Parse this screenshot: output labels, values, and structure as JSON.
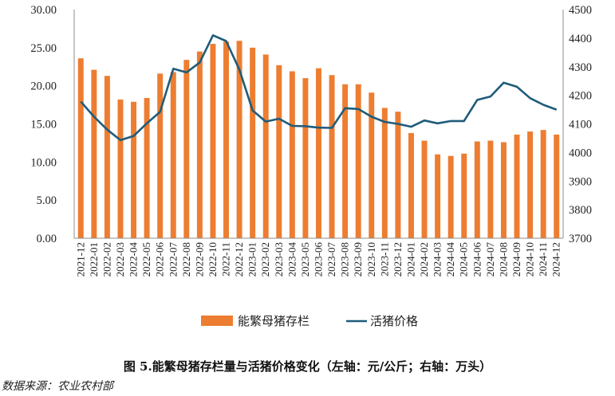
{
  "caption": "图 5.能繁母猪存栏量与活猪价格变化（左轴：元/公斤；右轴：万头）",
  "source": "数据来源：农业农村部",
  "colors": {
    "bar": "#ED7D31",
    "line": "#1F5C7A"
  },
  "chart_data": {
    "type": "bar+line",
    "categories": [
      "2021-12",
      "2022-01",
      "2022-02",
      "2022-03",
      "2022-04",
      "2022-05",
      "2022-06",
      "2022-07",
      "2022-08",
      "2022-09",
      "2022-10",
      "2022-11",
      "2022-12",
      "2023-01",
      "2023-02",
      "2023-03",
      "2023-04",
      "2023-05",
      "2023-06",
      "2023-07",
      "2023-08",
      "2023-09",
      "2023-10",
      "2023-11",
      "2023-12",
      "2024-01",
      "2024-02",
      "2024-03",
      "2024-04",
      "2024-05",
      "2024-06",
      "2024-07",
      "2024-08",
      "2024-09",
      "2024-10",
      "2024-11",
      "2024-12"
    ],
    "series": [
      {
        "name": "能繁母猪存栏",
        "type": "bar",
        "axis": "left",
        "values": [
          23.6,
          22.1,
          21.3,
          18.2,
          17.9,
          18.4,
          21.6,
          21.8,
          23.4,
          24.5,
          25.5,
          25.8,
          25.9,
          25.0,
          24.1,
          22.7,
          21.9,
          21.0,
          22.3,
          21.4,
          20.2,
          20.2,
          19.1,
          17.1,
          16.6,
          13.8,
          12.8,
          11.0,
          10.8,
          11.1,
          12.7,
          12.8,
          12.6,
          13.6,
          14.0,
          14.2,
          13.6
        ]
      },
      {
        "name": "活猪价格",
        "type": "line",
        "axis": "right",
        "values": [
          4178,
          4125,
          4080,
          4043,
          4058,
          4102,
          4142,
          4293,
          4280,
          4315,
          4410,
          4390,
          4290,
          4147,
          4108,
          4118,
          4093,
          4092,
          4087,
          4086,
          4155,
          4152,
          4125,
          4107,
          4100,
          4090,
          4112,
          4102,
          4110,
          4110,
          4184,
          4196,
          4244,
          4230,
          4190,
          4167,
          4150
        ]
      }
    ],
    "y_left": {
      "min": 0,
      "max": 30,
      "ticks": [
        "0.00",
        "5.00",
        "10.00",
        "15.00",
        "20.00",
        "25.00",
        "30.00"
      ]
    },
    "y_right": {
      "min": 3700,
      "max": 4500,
      "ticks": [
        "3700",
        "3800",
        "3900",
        "4000",
        "4100",
        "4200",
        "4300",
        "4400",
        "4500"
      ]
    },
    "grid": false,
    "legend_position": "bottom"
  }
}
